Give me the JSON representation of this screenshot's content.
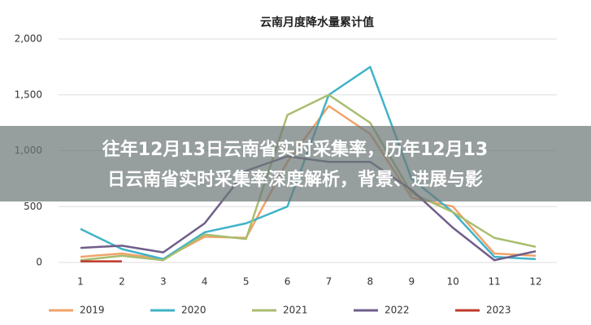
{
  "chart_data": {
    "type": "line",
    "title": "云南月度降水量累计值",
    "categories": [
      "1",
      "2",
      "3",
      "4",
      "5",
      "6",
      "7",
      "8",
      "9",
      "10",
      "11",
      "12"
    ],
    "series": [
      {
        "name": "2019",
        "color": "#f0a36a",
        "values": [
          50,
          80,
          30,
          230,
          220,
          900,
          1400,
          1150,
          580,
          500,
          80,
          60
        ]
      },
      {
        "name": "2020",
        "color": "#3fb3c8",
        "values": [
          300,
          120,
          30,
          270,
          350,
          500,
          1500,
          1750,
          750,
          450,
          50,
          30
        ]
      },
      {
        "name": "2021",
        "color": "#a8bd6f",
        "values": [
          20,
          60,
          20,
          250,
          210,
          1320,
          1500,
          1250,
          620,
          450,
          220,
          140
        ]
      },
      {
        "name": "2022",
        "color": "#6f5d8a",
        "values": [
          130,
          150,
          90,
          350,
          820,
          950,
          900,
          900,
          650,
          310,
          20,
          100
        ]
      },
      {
        "name": "2023",
        "color": "#c0392b",
        "values": [
          10,
          10,
          null,
          null,
          null,
          null,
          null,
          null,
          null,
          null,
          null,
          null
        ]
      }
    ],
    "ylim": [
      0,
      2000
    ],
    "yticks": [
      0,
      500,
      {
        "value": 1000,
        "label": "1,000"
      },
      {
        "value": 1500,
        "label": "1,500"
      },
      {
        "value": 2000,
        "label": "2,000"
      }
    ],
    "grid": true,
    "legend": "bottom",
    "banner_lines": [
      "往年12月13日云南省实时采集率，历年12月13",
      "日云南省实时采集率深度解析，背景、进展与影"
    ]
  }
}
